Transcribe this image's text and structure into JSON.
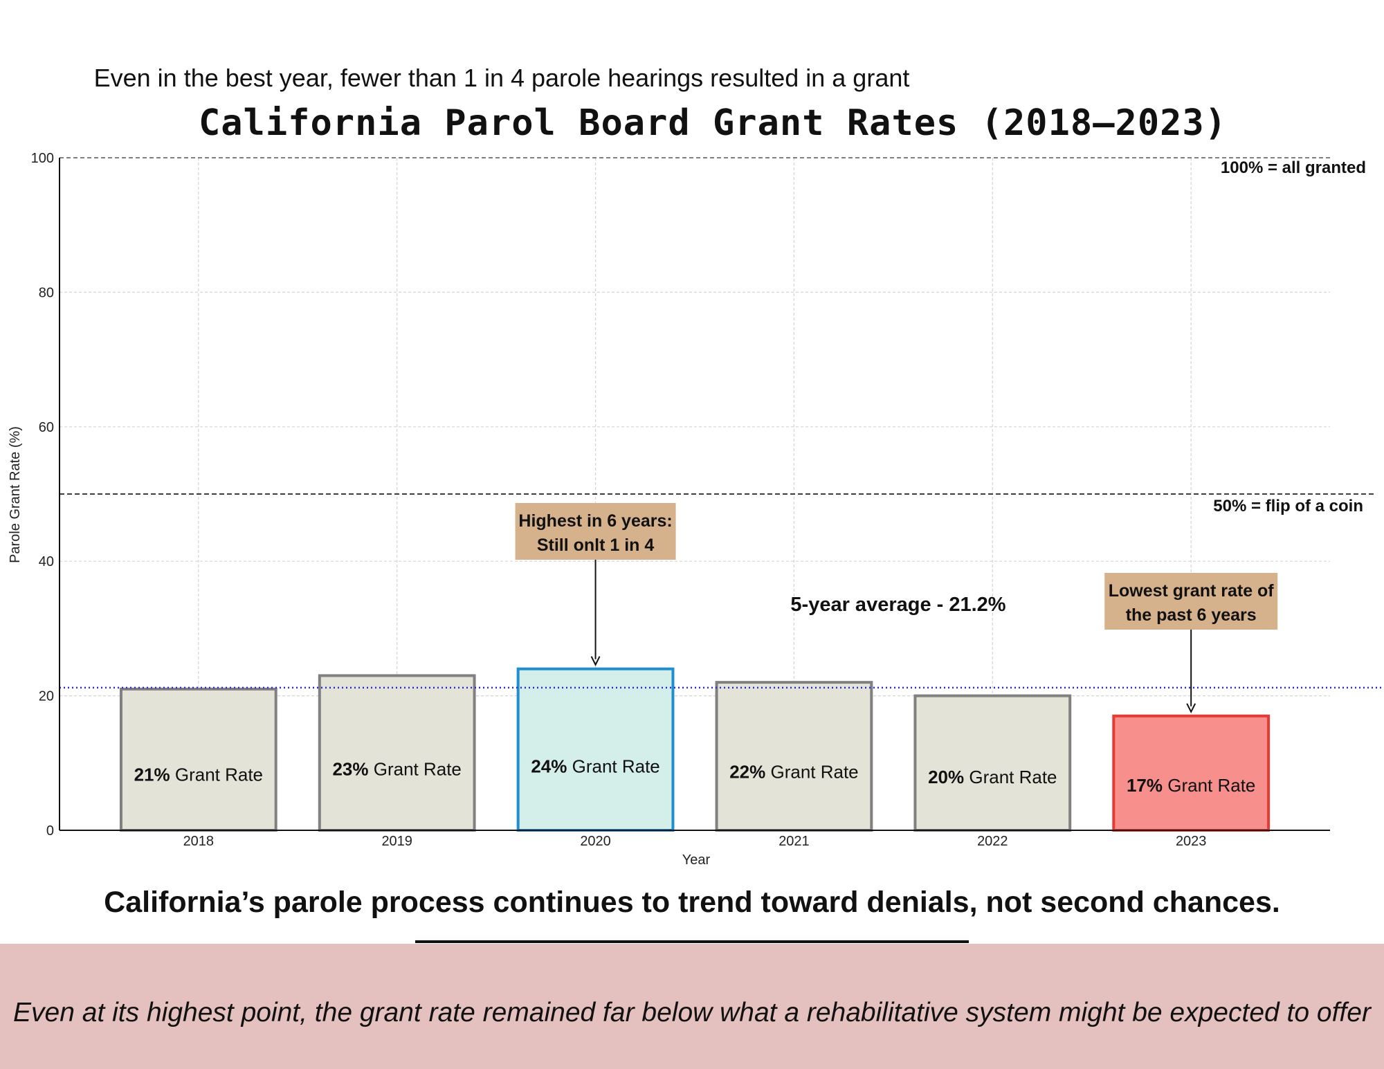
{
  "subtitle": "Even in the best year, fewer than 1 in 4 parole hearings resulted in a grant",
  "headline": "California’s parole process continues to trend toward denials, not second chances.",
  "footer": "Even at its highest point, the grant rate remained far below what a rehabilitative system might be expected to offer",
  "chart_data": {
    "type": "bar",
    "title": "California Parol Board Grant Rates (2018–2023)",
    "xlabel": "Year",
    "ylabel": "Parole Grant Rate (%)",
    "ylim": [
      0,
      100
    ],
    "yticks": [
      0,
      20,
      40,
      60,
      80,
      100
    ],
    "grid": true,
    "categories": [
      "2018",
      "2019",
      "2020",
      "2021",
      "2022",
      "2023"
    ],
    "values": [
      21,
      23,
      24,
      22,
      20,
      17
    ],
    "bar_label_values": [
      "21%",
      "23%",
      "24%",
      "22%",
      "20%",
      "17%"
    ],
    "bar_label_suffix": "Grant Rate",
    "bar_styles": [
      {
        "fill": "#e3e3d8",
        "stroke": "#808080"
      },
      {
        "fill": "#e3e3d8",
        "stroke": "#808080"
      },
      {
        "fill": "#d4eeea",
        "stroke": "#1f8fcf"
      },
      {
        "fill": "#e3e3d8",
        "stroke": "#808080"
      },
      {
        "fill": "#e3e3d8",
        "stroke": "#808080"
      },
      {
        "fill": "#f78f8c",
        "stroke": "#e83a32"
      }
    ],
    "reference_lines": [
      {
        "y": 100,
        "label": "100% = all granted",
        "color": "#555555",
        "style": "dashed"
      },
      {
        "y": 50,
        "label": "50% = flip of a coin",
        "color": "#222222",
        "style": "dashed"
      },
      {
        "y": 21.2,
        "label": "5-year average - 21.2%",
        "color": "#2a2ad6",
        "style": "dotted"
      }
    ],
    "annotations": [
      {
        "category": "2020",
        "lines": [
          "Highest in 6 years:",
          "Still onlt 1 in 4"
        ],
        "box_color": "#d6b28c"
      },
      {
        "category": "2023",
        "lines": [
          "Lowest grant rate of",
          "the past 6 years"
        ],
        "box_color": "#d6b28c"
      }
    ]
  }
}
